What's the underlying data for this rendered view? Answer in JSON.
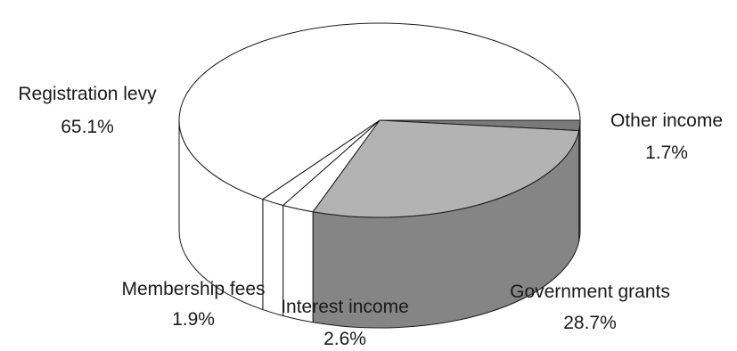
{
  "chart_data": {
    "type": "pie",
    "title": "",
    "start_angle_deg": 0,
    "direction": "clockwise",
    "slices": [
      {
        "label": "Other income",
        "value_label": "1.7%",
        "value": 1.7,
        "top_color": "#7a7a7a",
        "side_color": "#555555"
      },
      {
        "label": "Government grants",
        "value_label": "28.7%",
        "value": 28.7,
        "top_color": "#b3b3b3",
        "side_color": "#858585"
      },
      {
        "label": "Interest income",
        "value_label": "2.6%",
        "value": 2.6,
        "top_color": "#ffffff",
        "side_color": "#ffffff"
      },
      {
        "label": "Membership fees",
        "value_label": "1.9%",
        "value": 1.9,
        "top_color": "#ffffff",
        "side_color": "#ffffff"
      },
      {
        "label": "Registration levy",
        "value_label": "65.1%",
        "value": 65.1,
        "top_color": "#ffffff",
        "side_color": "#ffffff"
      }
    ],
    "legend": "none"
  }
}
